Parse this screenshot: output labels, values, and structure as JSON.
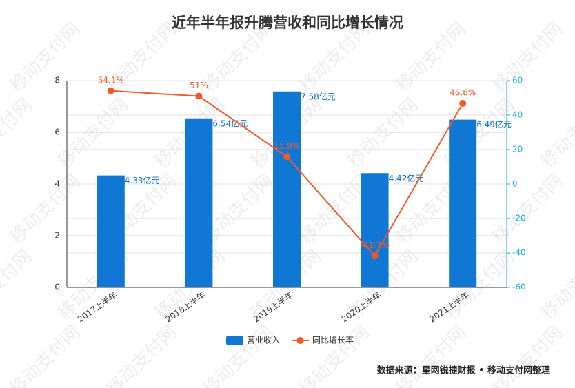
{
  "chart_data": {
    "type": "bar",
    "title": "近年半年报升腾营收和同比增长情况",
    "categories": [
      "2017上半年",
      "2018上半年",
      "2019上半年",
      "2020上半年",
      "2021上半年"
    ],
    "series": [
      {
        "name": "营业收入",
        "type": "bar",
        "color": "#1177d4",
        "axis": "y",
        "values": [
          4.33,
          6.54,
          7.58,
          4.42,
          6.49
        ],
        "value_labels": [
          "4.33亿元",
          "6.54亿元",
          "7.58亿元",
          "4.42亿元",
          "6.49亿元"
        ]
      },
      {
        "name": "同比增长率",
        "type": "line",
        "color": "#f05a28",
        "axis": "y2",
        "values": [
          54.1,
          51,
          15.9,
          -41.7,
          46.8
        ],
        "value_labels": [
          "54.1%",
          "51%",
          "15.9%",
          "-41.7%",
          "46.8%"
        ]
      }
    ],
    "ylim": [
      0,
      8
    ],
    "yticks": [
      0,
      2,
      4,
      6,
      8
    ],
    "y2lim": [
      -60,
      60
    ],
    "y2ticks": [
      -60,
      -40,
      -20,
      0,
      20,
      40,
      60
    ],
    "y2color": "#1ab3d6",
    "grid": true,
    "legend": "bottom",
    "source": "数据来源：星网锐捷财报 • 移动支付网整理",
    "watermark": "移动支付网"
  }
}
